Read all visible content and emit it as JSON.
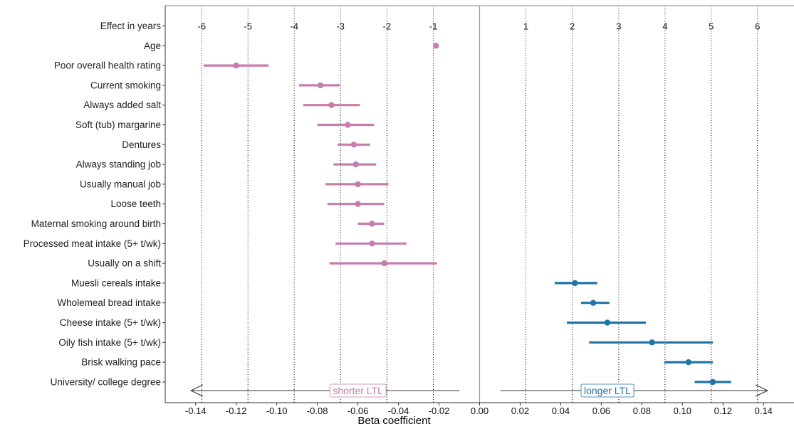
{
  "chart_data": {
    "type": "forest",
    "xlabel": "Beta coefficient",
    "xlim": [
      -0.155,
      0.155
    ],
    "x_ticks": [
      "-0.14",
      "-0.12",
      "-0.10",
      "-0.08",
      "-0.06",
      "-0.04",
      "-0.02",
      "0.00",
      "0.02",
      "0.04",
      "0.06",
      "0.08",
      "0.10",
      "0.12",
      "0.14"
    ],
    "years_row_label": "Effect in years",
    "years_ticks": [
      {
        "label": "-6",
        "beta": -0.137
      },
      {
        "label": "-5",
        "beta": -0.1142
      },
      {
        "label": "-4",
        "beta": -0.0914
      },
      {
        "label": "-3",
        "beta": -0.0686
      },
      {
        "label": "-2",
        "beta": -0.0457
      },
      {
        "label": "-1",
        "beta": -0.0228
      },
      {
        "label": "1",
        "beta": 0.0228
      },
      {
        "label": "2",
        "beta": 0.0457
      },
      {
        "label": "3",
        "beta": 0.0686
      },
      {
        "label": "4",
        "beta": 0.0914
      },
      {
        "label": "5",
        "beta": 0.1142
      },
      {
        "label": "6",
        "beta": 0.137
      }
    ],
    "negative_direction_label": "shorter LTL",
    "positive_direction_label": "longer LTL",
    "negative_color": "#c77cb0",
    "positive_color": "#1f74a8",
    "factors": [
      {
        "label": "Age",
        "beta": -0.0215,
        "lo": -0.0215,
        "hi": -0.0215,
        "group": "negative"
      },
      {
        "label": "Poor overall health rating",
        "beta": -0.12,
        "lo": -0.136,
        "hi": -0.104,
        "group": "negative"
      },
      {
        "label": "Current smoking",
        "beta": -0.0785,
        "lo": -0.089,
        "hi": -0.069,
        "group": "negative"
      },
      {
        "label": "Always added salt",
        "beta": -0.073,
        "lo": -0.087,
        "hi": -0.059,
        "group": "negative"
      },
      {
        "label": "Soft (tub) margarine",
        "beta": -0.065,
        "lo": -0.08,
        "hi": -0.052,
        "group": "negative"
      },
      {
        "label": "Dentures",
        "beta": -0.062,
        "lo": -0.07,
        "hi": -0.054,
        "group": "negative"
      },
      {
        "label": "Always standing job",
        "beta": -0.061,
        "lo": -0.072,
        "hi": -0.051,
        "group": "negative"
      },
      {
        "label": "Usually manual job",
        "beta": -0.06,
        "lo": -0.076,
        "hi": -0.045,
        "group": "negative"
      },
      {
        "label": "Loose teeth",
        "beta": -0.06,
        "lo": -0.075,
        "hi": -0.047,
        "group": "negative"
      },
      {
        "label": "Maternal smoking around birth",
        "beta": -0.053,
        "lo": -0.06,
        "hi": -0.047,
        "group": "negative"
      },
      {
        "label": "Processed meat intake (5+ t/wk)",
        "beta": -0.053,
        "lo": -0.071,
        "hi": -0.036,
        "group": "negative"
      },
      {
        "label": "Usually on a shift",
        "beta": -0.047,
        "lo": -0.074,
        "hi": -0.021,
        "group": "negative"
      },
      {
        "label": "Muesli cereals intake",
        "beta": 0.047,
        "lo": 0.037,
        "hi": 0.058,
        "group": "positive"
      },
      {
        "label": "Wholemeal bread intake",
        "beta": 0.056,
        "lo": 0.05,
        "hi": 0.064,
        "group": "positive"
      },
      {
        "label": "Cheese intake (5+ t/wk)",
        "beta": 0.063,
        "lo": 0.043,
        "hi": 0.082,
        "group": "positive"
      },
      {
        "label": "Oily fish intake (5+ t/wk)",
        "beta": 0.085,
        "lo": 0.054,
        "hi": 0.115,
        "group": "positive"
      },
      {
        "label": "Brisk walking pace",
        "beta": 0.103,
        "lo": 0.091,
        "hi": 0.115,
        "group": "positive"
      },
      {
        "label": "University/ college degree",
        "beta": 0.115,
        "lo": 0.106,
        "hi": 0.124,
        "group": "positive"
      }
    ]
  }
}
